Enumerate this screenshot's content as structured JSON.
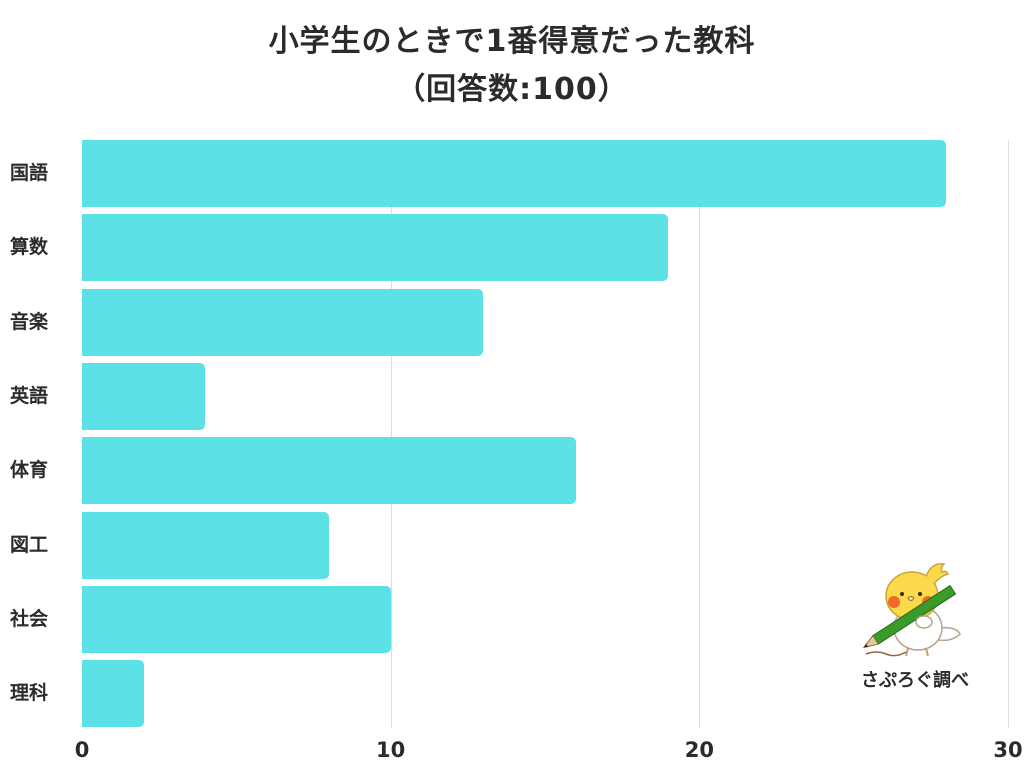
{
  "title": {
    "line1": "小学生のときで1番得意だった教科",
    "line2": "（回答数:100）"
  },
  "credit": "さぷろぐ調べ",
  "mascot": "bird-with-pencil-icon",
  "colors": {
    "bar": "#5CE1E6",
    "grid": "#dcdcdc",
    "text": "#2b2b2b",
    "background": "#ffffff"
  },
  "chart_data": {
    "type": "bar",
    "orientation": "horizontal",
    "title": "小学生のときで1番得意だった教科（回答数:100）",
    "xlabel": "",
    "ylabel": "",
    "categories": [
      "国語",
      "算数",
      "音楽",
      "英語",
      "体育",
      "図工",
      "社会",
      "理科"
    ],
    "values": [
      28,
      19,
      13,
      4,
      16,
      8,
      10,
      2
    ],
    "xlim": [
      0,
      30
    ],
    "xticks": [
      0,
      10,
      20,
      30
    ],
    "xtick_labels": [
      "0",
      "10",
      "20",
      "30"
    ],
    "grid": true,
    "legend": "none",
    "source_note": "さぷろぐ調べ"
  }
}
